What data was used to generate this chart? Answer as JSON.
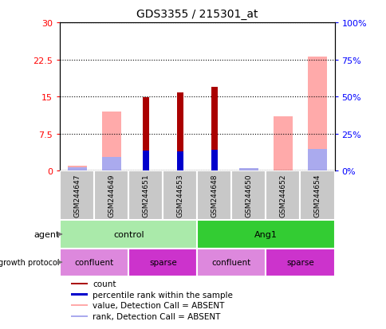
{
  "title": "GDS3355 / 215301_at",
  "samples": [
    "GSM244647",
    "GSM244649",
    "GSM244651",
    "GSM244653",
    "GSM244648",
    "GSM244650",
    "GSM244652",
    "GSM244654"
  ],
  "count_values": [
    0.5,
    0.0,
    14.8,
    15.8,
    17.0,
    0.5,
    0.0,
    0.0
  ],
  "rank_values": [
    0.0,
    0.0,
    13.5,
    13.0,
    14.2,
    0.0,
    0.0,
    0.0
  ],
  "absent_value_bars": [
    1.0,
    12.0,
    0.0,
    0.0,
    0.0,
    0.0,
    11.0,
    23.0
  ],
  "absent_rank_bars": [
    2.5,
    9.5,
    0.0,
    0.0,
    0.0,
    1.5,
    0.0,
    14.5
  ],
  "left_ylim": [
    0,
    30
  ],
  "right_ylim": [
    0,
    100
  ],
  "left_yticks": [
    0,
    7.5,
    15,
    22.5,
    30
  ],
  "right_yticks": [
    0,
    25,
    50,
    75,
    100
  ],
  "left_yticklabels": [
    "0",
    "7.5",
    "15",
    "22.5",
    "30"
  ],
  "right_yticklabels": [
    "0%",
    "25%",
    "50%",
    "75%",
    "100%"
  ],
  "color_count": "#aa0000",
  "color_rank": "#0000cc",
  "color_absent_value": "#ffaaaa",
  "color_absent_rank": "#aaaaee",
  "agent_labels": [
    {
      "text": "control",
      "start": 0,
      "end": 4,
      "color": "#aaeaaa"
    },
    {
      "text": "Ang1",
      "start": 4,
      "end": 8,
      "color": "#33cc33"
    }
  ],
  "growth_labels": [
    {
      "text": "confluent",
      "start": 0,
      "end": 2,
      "color": "#dd88dd"
    },
    {
      "text": "sparse",
      "start": 2,
      "end": 4,
      "color": "#cc33cc"
    },
    {
      "text": "confluent",
      "start": 4,
      "end": 6,
      "color": "#dd88dd"
    },
    {
      "text": "sparse",
      "start": 6,
      "end": 8,
      "color": "#cc33cc"
    }
  ],
  "legend_items": [
    {
      "label": "count",
      "color": "#aa0000"
    },
    {
      "label": "percentile rank within the sample",
      "color": "#0000cc"
    },
    {
      "label": "value, Detection Call = ABSENT",
      "color": "#ffaaaa"
    },
    {
      "label": "rank, Detection Call = ABSENT",
      "color": "#aaaaee"
    }
  ],
  "thin_bar_width": 0.18,
  "wide_bar_width": 0.55
}
